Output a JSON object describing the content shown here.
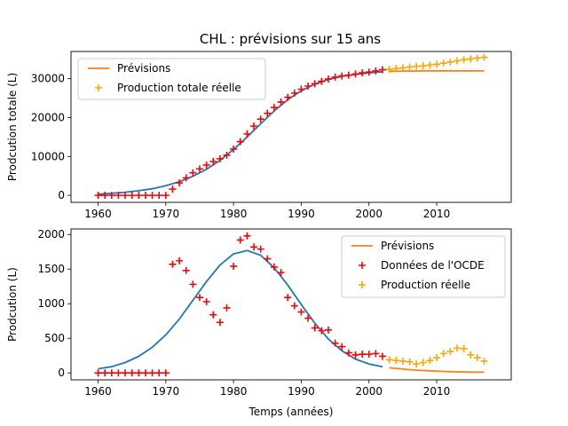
{
  "figure_title": "CHL : prévisions sur 15 ans",
  "colors": {
    "fit": "#1f77b4",
    "forecast": "#ff7f0e",
    "real_points": "#ff0000",
    "future_points": "#ffa500"
  },
  "chart_data": [
    {
      "type": "line",
      "title": "CHL : prévisions sur 15 ans",
      "xlabel": "",
      "ylabel": "Prodcution totale (L)",
      "xlim": [
        1956,
        2021
      ],
      "ylim": [
        -1800,
        37000
      ],
      "xticks": [
        1960,
        1970,
        1980,
        1990,
        2000,
        2010
      ],
      "yticks": [
        0,
        10000,
        20000,
        30000
      ],
      "legend_position": "top-left",
      "legend": [
        "Prévisions",
        "Production totale réelle"
      ],
      "series": [
        {
          "name": "",
          "kind": "line",
          "color": "#1f77b4",
          "x": [
            1960,
            1962,
            1964,
            1966,
            1968,
            1970,
            1972,
            1974,
            1976,
            1978,
            1980,
            1982,
            1984,
            1986,
            1988,
            1990,
            1992,
            1994,
            1996,
            1998,
            2000,
            2002
          ],
          "y": [
            300,
            500,
            800,
            1200,
            1700,
            2500,
            3500,
            4900,
            6700,
            9000,
            11800,
            15000,
            18400,
            21700,
            24600,
            26900,
            28600,
            29800,
            30600,
            31100,
            31500,
            31800
          ]
        },
        {
          "name": "Prévisions",
          "kind": "line",
          "color": "#ff7f0e",
          "x": [
            2003,
            2005,
            2007,
            2009,
            2011,
            2013,
            2015,
            2017
          ],
          "y": [
            31900,
            31950,
            31980,
            32000,
            32000,
            32000,
            32000,
            32000
          ]
        },
        {
          "name": "",
          "kind": "marker",
          "color": "#ff0000",
          "x": [
            1960,
            1961,
            1962,
            1963,
            1964,
            1965,
            1966,
            1967,
            1968,
            1969,
            1970,
            1971,
            1972,
            1973,
            1974,
            1975,
            1976,
            1977,
            1978,
            1979,
            1980,
            1981,
            1982,
            1983,
            1984,
            1985,
            1986,
            1987,
            1988,
            1989,
            1990,
            1991,
            1992,
            1993,
            1994,
            1995,
            1996,
            1997,
            1998,
            1999,
            2000,
            2001,
            2002
          ],
          "y": [
            0,
            0,
            0,
            0,
            0,
            0,
            0,
            0,
            0,
            0,
            0,
            1600,
            3200,
            4500,
            5800,
            6800,
            7800,
            8700,
            9400,
            10300,
            11900,
            13800,
            15800,
            17800,
            19600,
            21100,
            22600,
            24000,
            25200,
            26300,
            27300,
            28100,
            28700,
            29300,
            29900,
            30400,
            30700,
            30900,
            31200,
            31500,
            31700,
            32000,
            32300
          ]
        },
        {
          "name": "Production totale réelle",
          "kind": "marker",
          "color": "#ffa500",
          "x": [
            2003,
            2004,
            2005,
            2006,
            2007,
            2008,
            2009,
            2010,
            2011,
            2012,
            2013,
            2014,
            2015,
            2016,
            2017
          ],
          "y": [
            32400,
            32600,
            32800,
            33000,
            33200,
            33300,
            33500,
            33700,
            34000,
            34300,
            34600,
            34900,
            35100,
            35300,
            35500
          ]
        }
      ]
    },
    {
      "type": "line",
      "title": "",
      "xlabel": "Temps (années)",
      "ylabel": "Prodcution (L)",
      "xlim": [
        1956,
        2021
      ],
      "ylim": [
        -100,
        2080
      ],
      "xticks": [
        1960,
        1970,
        1980,
        1990,
        2000,
        2010
      ],
      "yticks": [
        0,
        500,
        1000,
        1500,
        2000
      ],
      "legend_position": "top-right",
      "legend": [
        "Prévisions",
        "Données de l'OCDE",
        "Production réelle"
      ],
      "series": [
        {
          "name": "",
          "kind": "line",
          "color": "#1f77b4",
          "x": [
            1960,
            1962,
            1964,
            1966,
            1968,
            1970,
            1972,
            1974,
            1976,
            1978,
            1980,
            1982,
            1984,
            1986,
            1988,
            1990,
            1992,
            1994,
            1996,
            1998,
            2000,
            2002
          ],
          "y": [
            60,
            90,
            150,
            240,
            370,
            550,
            780,
            1050,
            1320,
            1560,
            1720,
            1770,
            1700,
            1520,
            1270,
            990,
            720,
            490,
            320,
            200,
            130,
            90
          ]
        },
        {
          "name": "Prévisions",
          "kind": "line",
          "color": "#ff7f0e",
          "x": [
            2003,
            2005,
            2007,
            2009,
            2011,
            2013,
            2015,
            2017
          ],
          "y": [
            75,
            55,
            40,
            30,
            22,
            16,
            12,
            10
          ]
        },
        {
          "name": "Données de l'OCDE",
          "kind": "marker",
          "color": "#ff0000",
          "x": [
            1960,
            1961,
            1962,
            1963,
            1964,
            1965,
            1966,
            1967,
            1968,
            1969,
            1970,
            1971,
            1972,
            1973,
            1974,
            1975,
            1976,
            1977,
            1978,
            1979,
            1980,
            1981,
            1982,
            1983,
            1984,
            1985,
            1986,
            1987,
            1988,
            1989,
            1990,
            1991,
            1992,
            1993,
            1994,
            1995,
            1996,
            1997,
            1998,
            1999,
            2000,
            2001,
            2002
          ],
          "y": [
            0,
            0,
            0,
            0,
            0,
            0,
            0,
            0,
            0,
            0,
            0,
            1570,
            1620,
            1480,
            1280,
            1090,
            1030,
            840,
            730,
            940,
            1540,
            1920,
            1980,
            1820,
            1790,
            1650,
            1530,
            1450,
            1090,
            970,
            880,
            790,
            650,
            610,
            620,
            430,
            380,
            290,
            260,
            270,
            270,
            280,
            240
          ]
        },
        {
          "name": "Production réelle",
          "kind": "marker",
          "color": "#ffa500",
          "x": [
            2003,
            2004,
            2005,
            2006,
            2007,
            2008,
            2009,
            2010,
            2011,
            2012,
            2013,
            2014,
            2015,
            2016,
            2017
          ],
          "y": [
            190,
            180,
            170,
            160,
            130,
            150,
            180,
            220,
            280,
            310,
            360,
            350,
            260,
            220,
            170
          ]
        }
      ]
    }
  ]
}
